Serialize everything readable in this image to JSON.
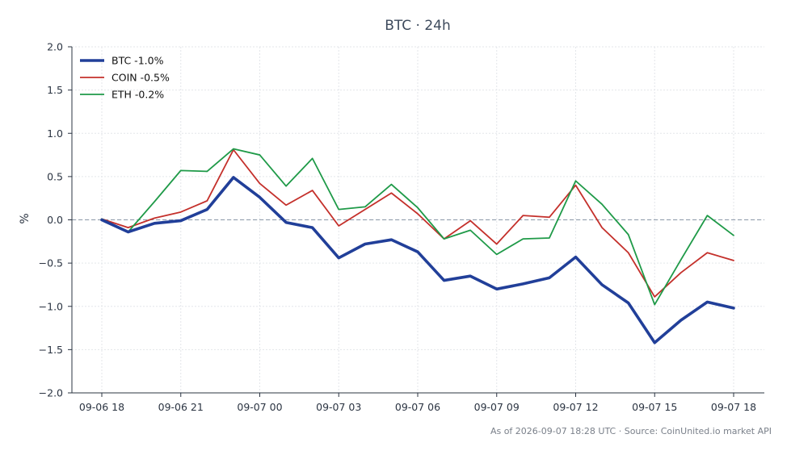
{
  "chart_data": {
    "type": "line",
    "title": "BTC · 24h",
    "ylabel": "%",
    "xlabel": "",
    "ylim": [
      -2.0,
      2.0
    ],
    "yticks": [
      2.0,
      1.5,
      1.0,
      0.5,
      0.0,
      -0.5,
      -1.0,
      -1.5,
      -2.0
    ],
    "ytick_labels": [
      "2.0",
      "1.5",
      "1.0",
      "0.5",
      "0.0",
      "−0.5",
      "−1.0",
      "−1.5",
      "−2.0"
    ],
    "xticks": [
      0,
      3,
      6,
      9,
      12,
      15,
      18,
      21,
      24
    ],
    "xtick_labels": [
      "09-06 18",
      "09-06 21",
      "09-07 00",
      "09-07 03",
      "09-07 06",
      "09-07 09",
      "09-07 12",
      "09-07 15",
      "09-07 18"
    ],
    "x": [
      0,
      1,
      2,
      3,
      4,
      5,
      6,
      7,
      8,
      9,
      10,
      11,
      12,
      13,
      14,
      15,
      16,
      17,
      18,
      19,
      20,
      21,
      22,
      23,
      24
    ],
    "grid": true,
    "zero_line": true,
    "legend_position": "top-left",
    "series": [
      {
        "name": "BTC -1.0%",
        "color": "#213f99",
        "width": 3.6,
        "values": [
          0.0,
          -0.14,
          -0.04,
          -0.01,
          0.12,
          0.49,
          0.26,
          -0.03,
          -0.09,
          -0.44,
          -0.28,
          -0.23,
          -0.37,
          -0.7,
          -0.65,
          -0.8,
          -0.74,
          -0.67,
          -0.43,
          -0.75,
          -0.96,
          -1.42,
          -1.16,
          -0.95,
          -1.02
        ]
      },
      {
        "name": "COIN -0.5%",
        "color": "#c4302b",
        "width": 1.8,
        "values": [
          0.01,
          -0.09,
          0.02,
          0.09,
          0.22,
          0.81,
          0.42,
          0.17,
          0.34,
          -0.07,
          0.12,
          0.31,
          0.07,
          -0.22,
          -0.01,
          -0.28,
          0.05,
          0.03,
          0.4,
          -0.09,
          -0.38,
          -0.89,
          -0.61,
          -0.38,
          -0.47
        ]
      },
      {
        "name": "ETH -0.2%",
        "color": "#1f9a48",
        "width": 1.8,
        "values": [
          0.01,
          -0.14,
          0.21,
          0.57,
          0.56,
          0.82,
          0.75,
          0.39,
          0.71,
          0.12,
          0.15,
          0.41,
          0.14,
          -0.22,
          -0.12,
          -0.4,
          -0.22,
          -0.21,
          0.45,
          0.18,
          -0.17,
          -0.98,
          -0.46,
          0.05,
          -0.18
        ]
      }
    ],
    "footer": "As of 2026-09-07 18:28 UTC · Source: CoinUnited.io market API"
  }
}
